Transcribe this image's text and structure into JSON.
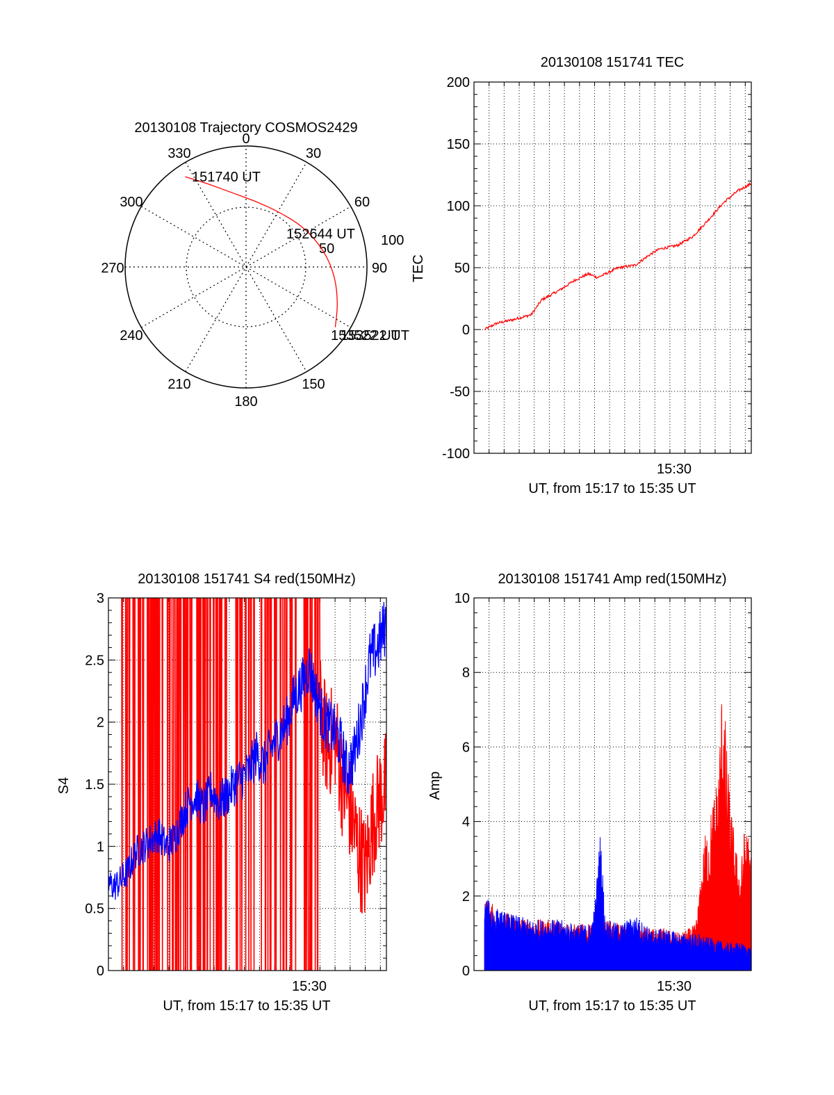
{
  "colors": {
    "red": "#ff0000",
    "blue": "#0000ff",
    "frame": "#000000"
  },
  "chart_data": [
    {
      "id": "trajectory",
      "type": "polar",
      "title": "20130108 Trajectory COSMOS2429",
      "azimuth_labels": [
        "0",
        "30",
        "60",
        "90",
        "150",
        "180",
        "210",
        "240",
        "270",
        "300",
        "330"
      ],
      "radial_labels": [
        "50",
        "100"
      ],
      "rlim": [
        0,
        100
      ],
      "grid": true,
      "track": {
        "color": "red",
        "points": [
          {
            "az": 326,
            "r": 90
          },
          {
            "az": 336,
            "r": 75
          },
          {
            "az": 350,
            "r": 62
          },
          {
            "az": 8,
            "r": 55
          },
          {
            "az": 30,
            "r": 53
          },
          {
            "az": 55,
            "r": 58
          },
          {
            "az": 78,
            "r": 66
          },
          {
            "az": 96,
            "r": 74
          },
          {
            "az": 112,
            "r": 82
          },
          {
            "az": 124,
            "r": 89
          }
        ]
      },
      "annotations": [
        {
          "text": "151740 UT",
          "az": 326,
          "r": 90
        },
        {
          "text": "152644 UT",
          "az": 68,
          "r": 60
        },
        {
          "text": "153522 UT",
          "az": 124,
          "r": 89
        },
        {
          "text": "153522 UT",
          "az": 124,
          "r": 89
        }
      ]
    },
    {
      "id": "tec",
      "type": "line",
      "title": "20130108 151741 TEC",
      "xlabel": "UT, from 15:17 to 15:35 UT",
      "ylabel": "TEC",
      "x_range_minutes": [
        17.0,
        35.4
      ],
      "x_tick_label": {
        "minute": 30,
        "text": "15:30"
      },
      "ylim": [
        -100,
        200
      ],
      "yticks": [
        "-100",
        "-50",
        "0",
        "50",
        "100",
        "150",
        "200"
      ],
      "grid": true,
      "series": [
        {
          "color": "red",
          "x_minutes": [
            17.7,
            18.5,
            19.6,
            20.8,
            21.5,
            22.7,
            23.7,
            24.6,
            25.2,
            26.6,
            27.7,
            28.6,
            29.3,
            30.5,
            31.5,
            32.5,
            33.6,
            34.5,
            35.4
          ],
          "y": [
            0,
            5,
            8,
            12,
            24,
            32,
            40,
            45,
            42,
            50,
            52,
            60,
            65,
            68,
            75,
            88,
            103,
            112,
            118
          ]
        }
      ]
    },
    {
      "id": "s4",
      "type": "line",
      "title": "20130108 151741 S4 red(150MHz)",
      "xlabel": "UT, from 15:17 to 15:35 UT",
      "ylabel": "S4",
      "x_range_minutes": [
        17.0,
        35.4
      ],
      "x_tick_label": {
        "minute": 30,
        "text": "15:30"
      },
      "ylim": [
        0,
        3
      ],
      "yticks": [
        "0",
        "0.5",
        "1",
        "1.5",
        "2",
        "2.5",
        "3"
      ],
      "grid": true,
      "series": [
        {
          "color": "red",
          "x_minutes": [
            17.7,
            18.5,
            19.5,
            20.5,
            21.5,
            22.5,
            23.5,
            24.5,
            25.5,
            26.5,
            27.5,
            28.5,
            29.0,
            29.5,
            30.0,
            30.5,
            31.0,
            31.5,
            32.0,
            32.5,
            33.0,
            33.5,
            34.0,
            34.5,
            35.0,
            35.4
          ],
          "y": [
            3,
            3,
            3,
            3,
            3,
            3,
            3,
            3,
            3,
            3,
            3,
            3,
            3,
            3,
            3,
            3,
            2.1,
            1.8,
            1.9,
            1.5,
            1.3,
            1.0,
            0.8,
            1.2,
            1.4,
            1.5
          ]
        },
        {
          "color": "blue",
          "x_minutes": [
            17.0,
            17.4,
            17.8,
            18.3,
            18.8,
            19.3,
            19.8,
            20.3,
            20.8,
            21.3,
            21.8,
            22.3,
            22.8,
            23.3,
            23.8,
            24.3,
            24.8,
            25.3,
            25.8,
            26.3,
            26.8,
            27.3,
            27.8,
            28.3,
            28.8,
            29.3,
            29.8,
            30.3,
            30.8,
            31.3,
            31.8,
            32.3,
            32.8,
            33.3,
            33.8,
            34.3,
            34.8,
            35.4
          ],
          "y": [
            0.7,
            0.68,
            0.72,
            0.8,
            0.95,
            1.0,
            1.05,
            1.1,
            1.0,
            1.05,
            1.2,
            1.35,
            1.4,
            1.3,
            1.45,
            1.35,
            1.4,
            1.5,
            1.55,
            1.6,
            1.75,
            1.65,
            1.8,
            1.9,
            2.0,
            2.2,
            2.3,
            2.45,
            2.2,
            2.0,
            1.95,
            1.85,
            1.6,
            1.75,
            2.1,
            2.5,
            2.6,
            2.8
          ]
        }
      ]
    },
    {
      "id": "amp",
      "type": "area",
      "title": "20130108 151741 Amp red(150MHz)",
      "xlabel": "UT, from 15:17 to 15:35 UT",
      "ylabel": "Amp",
      "x_range_minutes": [
        17.0,
        35.4
      ],
      "x_tick_label": {
        "minute": 30,
        "text": "15:30"
      },
      "ylim": [
        0,
        10
      ],
      "yticks": [
        "0",
        "2",
        "4",
        "6",
        "8",
        "10"
      ],
      "grid": true,
      "series": [
        {
          "color": "red",
          "x_minutes": [
            17.7,
            18.7,
            19.7,
            20.7,
            21.7,
            22.7,
            23.7,
            24.7,
            25.7,
            26.7,
            27.7,
            28.7,
            29.7,
            30.7,
            31.2,
            31.7,
            32.0,
            32.3,
            32.6,
            32.9,
            33.2,
            33.5,
            33.8,
            34.1,
            34.4,
            34.7,
            35.0,
            35.4
          ],
          "y": [
            1.6,
            1.3,
            1.2,
            1.1,
            1.1,
            1.1,
            1.0,
            1.0,
            1.1,
            1.0,
            1.0,
            0.9,
            0.9,
            0.8,
            0.9,
            1.0,
            1.8,
            2.9,
            3.2,
            3.8,
            4.3,
            6.5,
            4.6,
            3.4,
            2.6,
            2.2,
            3.3,
            2.5
          ]
        },
        {
          "color": "blue",
          "x_minutes": [
            17.7,
            18.7,
            19.7,
            20.7,
            21.7,
            22.7,
            23.7,
            24.7,
            25.0,
            25.4,
            25.7,
            26.7,
            27.7,
            28.7,
            29.7,
            30.7,
            31.7,
            32.7,
            33.7,
            34.7,
            35.4
          ],
          "y": [
            1.6,
            1.3,
            1.2,
            1.1,
            1.1,
            1.1,
            1.0,
            1.0,
            1.4,
            3.1,
            1.1,
            1.0,
            1.2,
            0.9,
            0.9,
            0.8,
            0.8,
            0.7,
            0.6,
            0.6,
            0.5
          ]
        }
      ]
    }
  ]
}
